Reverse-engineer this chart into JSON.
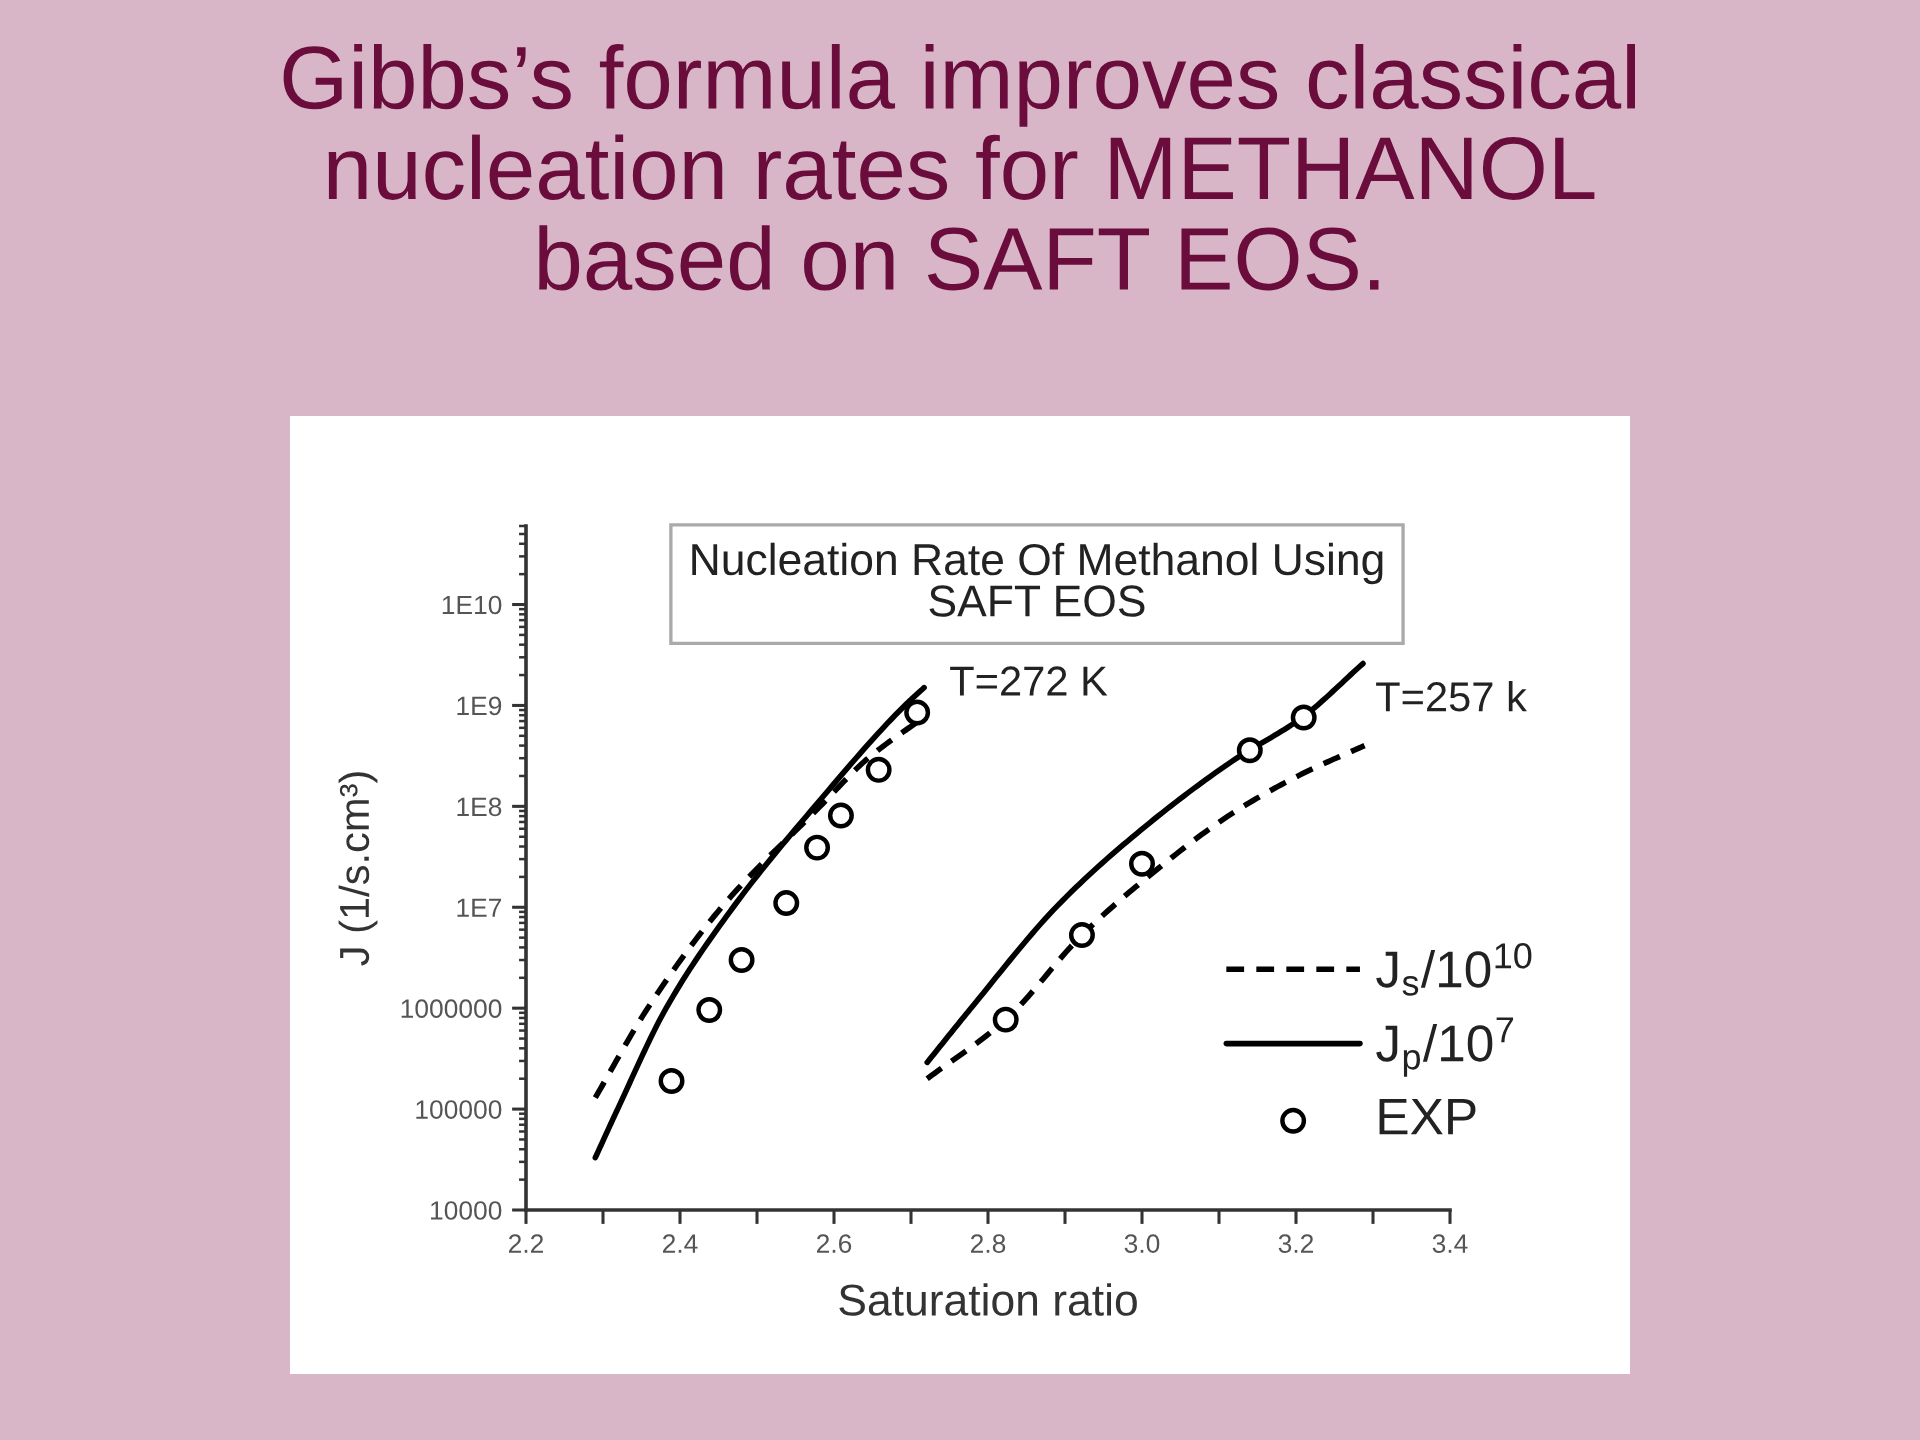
{
  "chart_data": {
    "type": "line",
    "title": "Gibbs’s formula improves classical\nnucleation rates for METHANOL\nbased on SAFT EOS.",
    "subtitle": "Nucleation Rate Of Methanol Using\nSAFT EOS",
    "xlabel": "Saturation ratio",
    "ylabel": "J (1/s.cm³)",
    "annotations": [
      "T=272 K",
      "T=257 k"
    ],
    "log": "y",
    "legend": "bottom right",
    "xlim": [
      2.2,
      3.4
    ],
    "ylim": [
      10000,
      60000000000
    ],
    "xticks": [
      2.2,
      {
        "value": 2.3,
        "label": null
      },
      2.4,
      {
        "value": 2.5,
        "label": null
      },
      2.6,
      {
        "value": 2.7,
        "label": null
      },
      2.8,
      {
        "value": 2.9,
        "label": null
      },
      {
        "value": 3,
        "label": "3.0"
      },
      {
        "value": 3.1,
        "label": null
      },
      3.2,
      {
        "value": 3.3,
        "label": null
      },
      3.4
    ],
    "yticks": [
      10000,
      100000,
      1000000,
      {
        "value": 10000000,
        "label": "1E7"
      },
      {
        "value": 100000000,
        "label": "1E8"
      },
      {
        "value": 1000000000,
        "label": "1E9"
      },
      {
        "value": 10000000000,
        "label": "1E10"
      }
    ],
    "series": [
      {
        "name": "J$_{s}$/10$^{10}$",
        "color": "#000000",
        "line_style": "dashed",
        "x": [
          2.29,
          2.358,
          2.454,
          2.582,
          2.642,
          2.715
        ],
        "values": [
          130000,
          1000000,
          10000000,
          100000000,
          290000000,
          750000000
        ]
      },
      {
        "name": "J$_{p}$/10$^{7}$",
        "color": "#000000",
        "line_style": "solid",
        "x": [
          2.29,
          2.319,
          2.382,
          2.469,
          2.575,
          2.692,
          2.717
        ],
        "values": [
          33000,
          100000,
          1000000,
          10000000,
          100000000,
          1000000000,
          1500000000
        ]
      },
      {
        "color": "#000000",
        "line_style": "dashed",
        "x": [
          2.721,
          2.823,
          2.922,
          3.004,
          3.117,
          3.208,
          3.289
        ],
        "values": [
          200000,
          770000,
          5300000,
          19000000,
          85000000,
          210000000,
          400000000
        ]
      },
      {
        "color": "#000000",
        "line_style": "solid",
        "x": [
          2.721,
          2.777,
          2.891,
          3.004,
          3.117,
          3.208,
          3.287
        ],
        "values": [
          290000,
          980000,
          10500000,
          63000000,
          280000000,
          760000000,
          2600000000
        ]
      },
      {
        "type": "scatter",
        "name": "EXP",
        "color": "#000000",
        "marker": "circle",
        "x": [
          2.389,
          2.438,
          2.48,
          2.538,
          2.578,
          2.609,
          2.658,
          2.708,
          2.823,
          2.922,
          3.0,
          3.14,
          3.21
        ],
        "values": [
          190000,
          960000,
          3000000,
          11000000,
          39000000,
          81000000,
          230000000,
          850000000,
          770000,
          5300000,
          27000000,
          360000000,
          760000000
        ]
      }
    ]
  }
}
